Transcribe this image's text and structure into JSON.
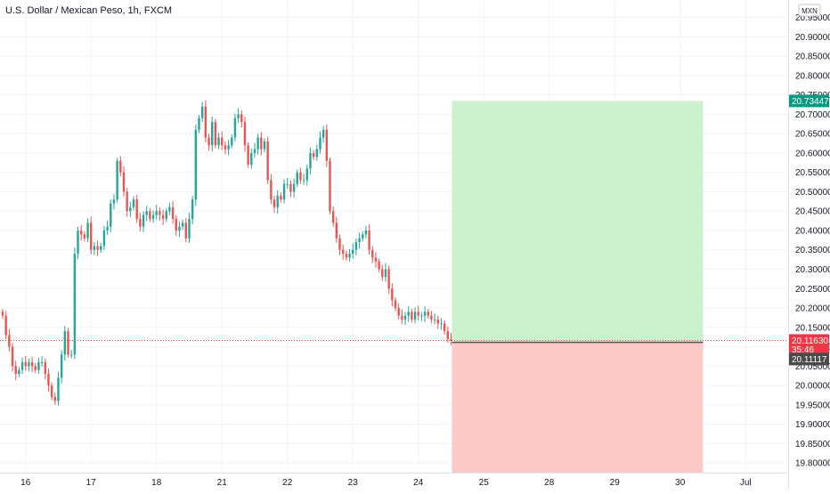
{
  "header": {
    "symbol_title": "U.S. Dollar / Mexican Peso, 1h, FXCM",
    "currency_badge": "MXN"
  },
  "colors": {
    "up": "#26a69a",
    "down": "#ef5350",
    "grid": "#f0f3fa",
    "axis_border": "#e0e3eb",
    "profit_zone": "#cdf0cd",
    "loss_zone": "#fdc9c9",
    "target_tag": "#089981",
    "current_tag": "#f23645",
    "entry_tag": "#4a4a4a",
    "dotted_line": "#f23645"
  },
  "chart_data": {
    "type": "candlestick",
    "title": "U.S. Dollar / Mexican Peso, 1h, FXCM",
    "y_unit": "MXN",
    "ylim": [
      19.775,
      20.995
    ],
    "y_ticks": [
      "19.80000",
      "19.85000",
      "19.90000",
      "19.95000",
      "20.00000",
      "20.05000",
      "20.10000",
      "20.15000",
      "20.20000",
      "20.25000",
      "20.30000",
      "20.35000",
      "20.40000",
      "20.45000",
      "20.50000",
      "20.55000",
      "20.60000",
      "20.65000",
      "20.70000",
      "20.75000",
      "20.80000",
      "20.85000",
      "20.90000",
      "20.95000"
    ],
    "x_ticks": [
      {
        "label": "16",
        "index": 7
      },
      {
        "label": "17",
        "index": 27
      },
      {
        "label": "18",
        "index": 47
      },
      {
        "label": "21",
        "index": 67
      },
      {
        "label": "22",
        "index": 87
      },
      {
        "label": "23",
        "index": 107
      },
      {
        "label": "24",
        "index": 127
      },
      {
        "label": "25",
        "index": 147
      },
      {
        "label": "28",
        "index": 167
      },
      {
        "label": "29",
        "index": 187
      },
      {
        "label": "30",
        "index": 207
      },
      {
        "label": "Jul",
        "index": 227
      }
    ],
    "candle_count_visible": 138,
    "closes": [
      20.18,
      20.13,
      20.1,
      20.05,
      20.03,
      20.04,
      20.06,
      20.05,
      20.06,
      20.05,
      20.04,
      20.06,
      20.06,
      20.03,
      20.0,
      19.97,
      19.96,
      20.02,
      20.08,
      20.14,
      20.08,
      20.08,
      20.34,
      20.4,
      20.39,
      20.38,
      20.42,
      20.35,
      20.36,
      20.35,
      20.36,
      20.4,
      20.41,
      20.47,
      20.48,
      20.58,
      20.55,
      20.5,
      20.45,
      20.46,
      20.48,
      20.43,
      20.41,
      20.44,
      20.45,
      20.43,
      20.44,
      20.45,
      20.44,
      20.43,
      20.45,
      20.46,
      20.43,
      20.4,
      20.41,
      20.42,
      20.38,
      20.43,
      20.48,
      20.66,
      20.69,
      20.72,
      20.64,
      20.62,
      20.68,
      20.62,
      20.64,
      20.62,
      20.61,
      20.62,
      20.64,
      20.69,
      20.7,
      20.68,
      20.62,
      20.57,
      20.6,
      20.61,
      20.64,
      20.61,
      20.63,
      20.53,
      20.48,
      20.46,
      20.49,
      20.48,
      20.52,
      20.52,
      20.5,
      20.52,
      20.55,
      20.53,
      20.53,
      20.56,
      20.6,
      20.59,
      20.61,
      20.64,
      20.66,
      20.58,
      20.45,
      20.42,
      20.38,
      20.35,
      20.34,
      20.33,
      20.34,
      20.35,
      20.37,
      20.38,
      20.39,
      20.4,
      20.35,
      20.33,
      20.32,
      20.3,
      20.28,
      20.3,
      20.25,
      20.22,
      20.2,
      20.18,
      20.17,
      20.18,
      20.19,
      20.17,
      20.19,
      20.18,
      20.18,
      20.19,
      20.18,
      20.17,
      20.17,
      20.16,
      20.16,
      20.14,
      20.12,
      20.116
    ],
    "position": {
      "target_price": 20.73447,
      "entry_price": 20.11117,
      "stop_price": 19.775,
      "start_index": 137,
      "end_index": 214
    },
    "price_labels": {
      "target": "20.73447",
      "current": "20.11630",
      "countdown": "35:46",
      "entry": "20.11117"
    }
  }
}
